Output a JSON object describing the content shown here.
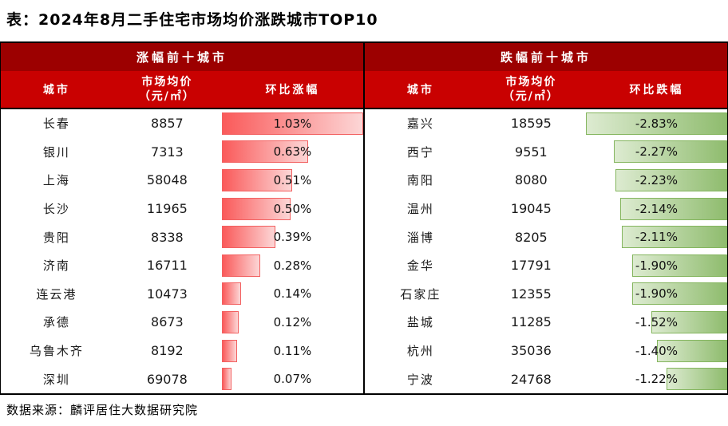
{
  "page": {
    "title": "表：2024年8月二手住宅市场均价涨跌城市TOP10",
    "source": "数据来源：麟评居住大数据研究院"
  },
  "colors": {
    "band_dark_red": "#9c0000",
    "band_red": "#c90101",
    "divider": "#000000",
    "bar_up_start": "#fa5a5a",
    "bar_up_end": "#fcd6d6",
    "bar_up_border": "#f26060",
    "bar_down_start": "#ddebd1",
    "bar_down_end": "#8fbc6e",
    "bar_down_border": "#84b55e"
  },
  "chart_data": [
    {
      "type": "table",
      "panel": "gainers",
      "group_title": "涨幅前十城市",
      "columns": [
        "城市",
        "市场均价\n（元/㎡）",
        "环比涨幅"
      ],
      "bar_style": "red gradient data bar, anchored left, grows rightward",
      "bar_axis_max": 1.03,
      "rows": [
        {
          "city": "长春",
          "price": 8857,
          "pct": 1.03,
          "pct_label": "1.03%"
        },
        {
          "city": "银川",
          "price": 7313,
          "pct": 0.63,
          "pct_label": "0.63%"
        },
        {
          "city": "上海",
          "price": 58048,
          "pct": 0.51,
          "pct_label": "0.51%"
        },
        {
          "city": "长沙",
          "price": 11965,
          "pct": 0.5,
          "pct_label": "0.50%"
        },
        {
          "city": "贵阳",
          "price": 8338,
          "pct": 0.39,
          "pct_label": "0.39%"
        },
        {
          "city": "济南",
          "price": 16711,
          "pct": 0.28,
          "pct_label": "0.28%"
        },
        {
          "city": "连云港",
          "price": 10473,
          "pct": 0.14,
          "pct_label": "0.14%"
        },
        {
          "city": "承德",
          "price": 8673,
          "pct": 0.12,
          "pct_label": "0.12%"
        },
        {
          "city": "乌鲁木齐",
          "price": 8192,
          "pct": 0.11,
          "pct_label": "0.11%"
        },
        {
          "city": "深圳",
          "price": 69078,
          "pct": 0.07,
          "pct_label": "0.07%"
        }
      ]
    },
    {
      "type": "table",
      "panel": "decliners",
      "group_title": "跌幅前十城市",
      "columns": [
        "城市",
        "市场均价\n（元/㎡）",
        "环比跌幅"
      ],
      "bar_style": "green gradient data bar, anchored right, grows leftward",
      "bar_axis_max": 2.83,
      "rows": [
        {
          "city": "嘉兴",
          "price": 18595,
          "pct": -2.83,
          "pct_label": "-2.83%"
        },
        {
          "city": "西宁",
          "price": 9551,
          "pct": -2.27,
          "pct_label": "-2.27%"
        },
        {
          "city": "南阳",
          "price": 8080,
          "pct": -2.23,
          "pct_label": "-2.23%"
        },
        {
          "city": "温州",
          "price": 19045,
          "pct": -2.14,
          "pct_label": "-2.14%"
        },
        {
          "city": "淄博",
          "price": 8205,
          "pct": -2.11,
          "pct_label": "-2.11%"
        },
        {
          "city": "金华",
          "price": 17791,
          "pct": -1.9,
          "pct_label": "-1.90%"
        },
        {
          "city": "石家庄",
          "price": 12355,
          "pct": -1.9,
          "pct_label": "-1.90%"
        },
        {
          "city": "盐城",
          "price": 11285,
          "pct": -1.52,
          "pct_label": "-1.52%"
        },
        {
          "city": "杭州",
          "price": 35036,
          "pct": -1.4,
          "pct_label": "-1.40%"
        },
        {
          "city": "宁波",
          "price": 24768,
          "pct": -1.22,
          "pct_label": "-1.22%"
        }
      ]
    }
  ]
}
